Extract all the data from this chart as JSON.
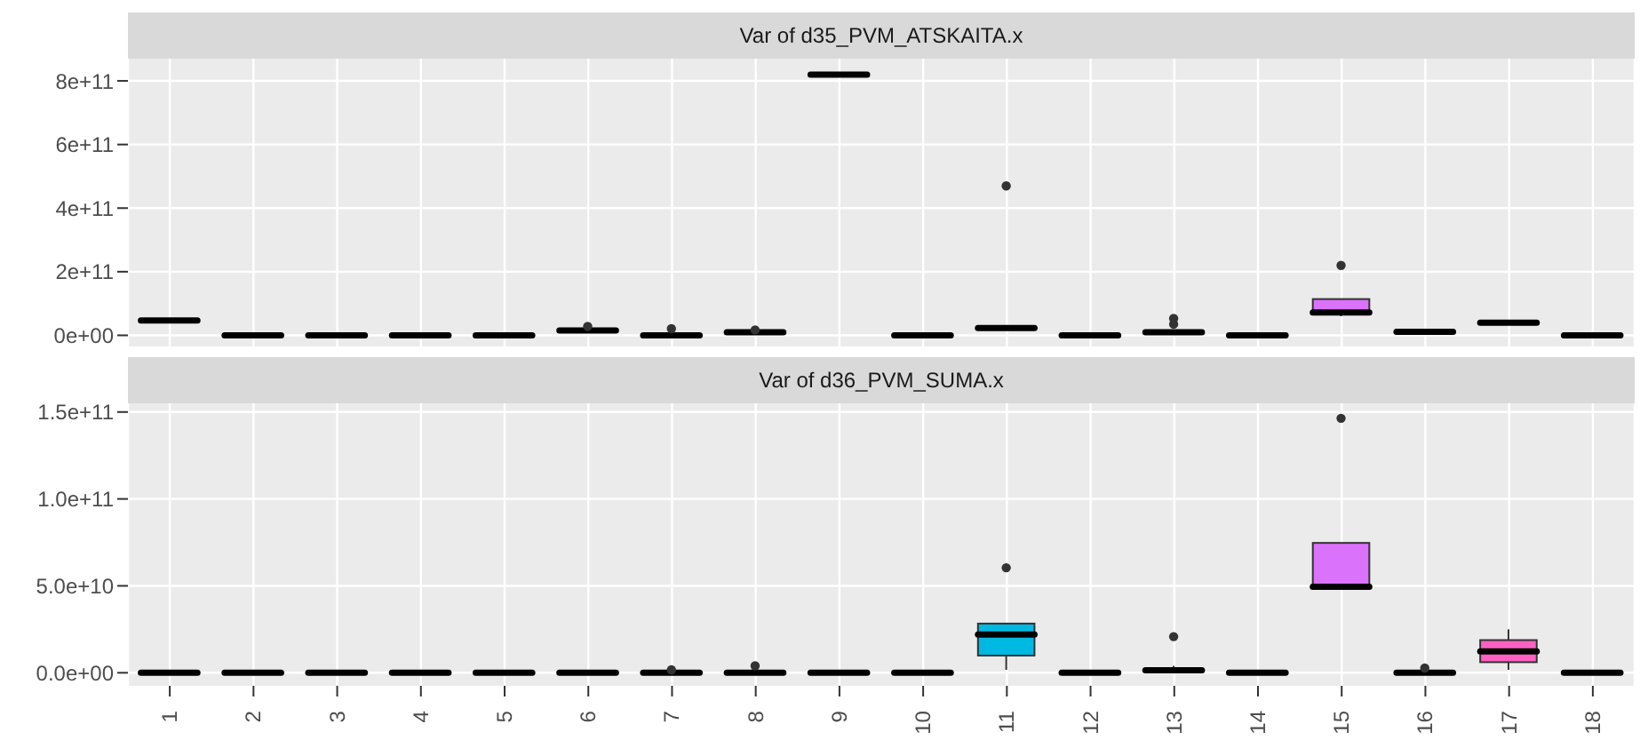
{
  "chart_data": [
    {
      "type": "box",
      "title": "Var of d35_PVM_ATSKAITA.x",
      "categories": [
        "1",
        "2",
        "3",
        "4",
        "5",
        "6",
        "7",
        "8",
        "9",
        "10",
        "11",
        "12",
        "13",
        "14",
        "15",
        "16",
        "17",
        "18"
      ],
      "colors": [
        null,
        null,
        null,
        null,
        null,
        null,
        null,
        null,
        null,
        null,
        null,
        null,
        null,
        null,
        "#DB72FB",
        null,
        null,
        null
      ],
      "boxes": [
        {
          "low": 47000000000.0,
          "q1": 47000000000.0,
          "median": 47000000000.0,
          "q3": 47000000000.0,
          "high": 47000000000.0
        },
        {
          "low": 0,
          "q1": 0,
          "median": 0,
          "q3": 0,
          "high": 0
        },
        {
          "low": 0,
          "q1": 0,
          "median": 0,
          "q3": 0,
          "high": 0
        },
        {
          "low": 0,
          "q1": 0,
          "median": 0,
          "q3": 0,
          "high": 0
        },
        {
          "low": 0,
          "q1": 0,
          "median": 0,
          "q3": 0,
          "high": 0
        },
        {
          "low": 15000000000.0,
          "q1": 15000000000.0,
          "median": 15000000000.0,
          "q3": 15000000000.0,
          "high": 15000000000.0,
          "outliers": [
            28000000000.0
          ]
        },
        {
          "low": 0,
          "q1": 0,
          "median": 0,
          "q3": 0,
          "high": 0,
          "outliers": [
            21000000000.0
          ]
        },
        {
          "low": 10000000000.0,
          "q1": 10000000000.0,
          "median": 10000000000.0,
          "q3": 10000000000.0,
          "high": 10000000000.0,
          "outliers": [
            17000000000.0
          ]
        },
        {
          "low": 820000000000.0,
          "q1": 820000000000.0,
          "median": 820000000000.0,
          "q3": 820000000000.0,
          "high": 820000000000.0
        },
        {
          "low": 0,
          "q1": 0,
          "median": 0,
          "q3": 0,
          "high": 0
        },
        {
          "low": 20000000000.0,
          "q1": 21000000000.0,
          "median": 23000000000.0,
          "q3": 28000000000.0,
          "high": 28000000000.0,
          "outliers": [
            470000000000.0
          ]
        },
        {
          "low": 0,
          "q1": 0,
          "median": 0,
          "q3": 0,
          "high": 0
        },
        {
          "low": 10000000000.0,
          "q1": 10000000000.0,
          "median": 10000000000.0,
          "q3": 10000000000.0,
          "high": 10000000000.0,
          "outliers": [
            35000000000.0,
            53000000000.0
          ]
        },
        {
          "low": 0,
          "q1": 0,
          "median": 0,
          "q3": 0,
          "high": 0
        },
        {
          "low": 60000000000.0,
          "q1": 72000000000.0,
          "median": 72000000000.0,
          "q3": 114000000000.0,
          "high": 114000000000.0,
          "outliers": [
            220000000000.0
          ]
        },
        {
          "low": 11000000000.0,
          "q1": 11000000000.0,
          "median": 11000000000.0,
          "q3": 11000000000.0,
          "high": 11000000000.0
        },
        {
          "low": 36000000000.0,
          "q1": 36000000000.0,
          "median": 40000000000.0,
          "q3": 43000000000.0,
          "high": 45000000000.0
        },
        {
          "low": 0,
          "q1": 0,
          "median": 0,
          "q3": 0,
          "high": 0
        }
      ],
      "ylim": [
        -35000000000.0,
        870000000000.0
      ],
      "yticks": [
        {
          "value": 0,
          "label": "0e+00"
        },
        {
          "value": 200000000000.0,
          "label": "2e+11"
        },
        {
          "value": 400000000000.0,
          "label": "4e+11"
        },
        {
          "value": 600000000000.0,
          "label": "6e+11"
        },
        {
          "value": 800000000000.0,
          "label": "8e+11"
        }
      ],
      "grid": true,
      "tick_labels": "y"
    },
    {
      "type": "box",
      "title": "Var of d36_PVM_SUMA.x",
      "categories": [
        "1",
        "2",
        "3",
        "4",
        "5",
        "6",
        "7",
        "8",
        "9",
        "10",
        "11",
        "12",
        "13",
        "14",
        "15",
        "16",
        "17",
        "18"
      ],
      "colors": [
        null,
        null,
        null,
        null,
        null,
        null,
        null,
        null,
        null,
        null,
        "#00B9E3",
        null,
        null,
        null,
        "#DB72FB",
        null,
        "#FF61C3",
        null
      ],
      "boxes": [
        {
          "low": 0,
          "q1": 0,
          "median": 0,
          "q3": 0,
          "high": 0
        },
        {
          "low": 0,
          "q1": 0,
          "median": 0,
          "q3": 0,
          "high": 0
        },
        {
          "low": 0,
          "q1": 0,
          "median": 0,
          "q3": 0,
          "high": 0
        },
        {
          "low": 0,
          "q1": 0,
          "median": 0,
          "q3": 0,
          "high": 0
        },
        {
          "low": 0,
          "q1": 0,
          "median": 0,
          "q3": 0,
          "high": 0
        },
        {
          "low": 0,
          "q1": 0,
          "median": 0,
          "q3": 0,
          "high": 0
        },
        {
          "low": 0,
          "q1": 0,
          "median": 0,
          "q3": 0,
          "high": 0,
          "outliers": [
            1700000000.0
          ]
        },
        {
          "low": 0,
          "q1": 0,
          "median": 0,
          "q3": 0,
          "high": 0,
          "outliers": [
            4000000000.0
          ]
        },
        {
          "low": 0,
          "q1": 0,
          "median": 0,
          "q3": 0,
          "high": 0
        },
        {
          "low": 0,
          "q1": 0,
          "median": 0,
          "q3": 0,
          "high": 0
        },
        {
          "low": 1700000000.0,
          "q1": 9900000000.0,
          "median": 22000000000.0,
          "q3": 28300000000.0,
          "high": 28300000000.0,
          "outliers": [
            60400000000.0
          ]
        },
        {
          "low": 0,
          "q1": 0,
          "median": 0,
          "q3": 0,
          "high": 0
        },
        {
          "low": 1500000000.0,
          "q1": 1500000000.0,
          "median": 1500000000.0,
          "q3": 1500000000.0,
          "high": 4000000000.0,
          "outliers": [
            20800000000.0
          ]
        },
        {
          "low": 0,
          "q1": 0,
          "median": 0,
          "q3": 0,
          "high": 0
        },
        {
          "low": 49500000000.0,
          "q1": 49500000000.0,
          "median": 49500000000.0,
          "q3": 74700000000.0,
          "high": 74700000000.0,
          "outliers": [
            146400000000.0
          ]
        },
        {
          "low": 0,
          "q1": 0,
          "median": 0,
          "q3": 0,
          "high": 0,
          "outliers": [
            2700000000.0
          ]
        },
        {
          "low": 1700000000.0,
          "q1": 6100000000.0,
          "median": 12300000000.0,
          "q3": 18800000000.0,
          "high": 25000000000.0
        },
        {
          "low": 0,
          "q1": 0,
          "median": 0,
          "q3": 0,
          "high": 0
        }
      ],
      "ylim": [
        -7500000000.0,
        155000000000.0
      ],
      "yticks": [
        {
          "value": 0,
          "label": "0.0e+00"
        },
        {
          "value": 50000000000.0,
          "label": "5.0e+10"
        },
        {
          "value": 100000000000.0,
          "label": "1.0e+11"
        },
        {
          "value": 150000000000.0,
          "label": "1.5e+11"
        }
      ],
      "grid": true
    }
  ]
}
